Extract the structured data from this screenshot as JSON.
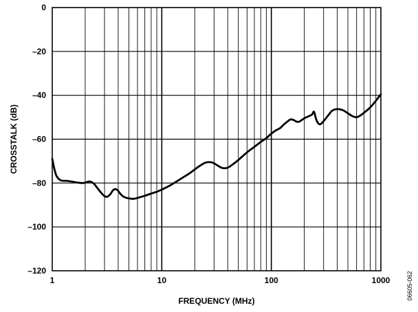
{
  "chart_data": {
    "type": "line",
    "xlabel": "FREQUENCY (MHz)",
    "ylabel": "CROSSTALK (dB)",
    "xscale": "log",
    "xlim": [
      1,
      1000
    ],
    "ylim": [
      -120,
      0
    ],
    "xticks": [
      "1",
      "10",
      "100",
      "1000"
    ],
    "yticks": [
      "0",
      "–20",
      "–40",
      "–60",
      "–80",
      "–100",
      "–120"
    ],
    "grid": true,
    "legend": "none",
    "series": [
      {
        "x": [
          1,
          1.05,
          1.1,
          1.2,
          1.35,
          1.5,
          1.7,
          1.9,
          2.0,
          2.2,
          2.4,
          2.6,
          2.8,
          3.0,
          3.2,
          3.4,
          3.6,
          3.8,
          4.0,
          4.2,
          4.5,
          5.0,
          5.5,
          6.0,
          7.0,
          8.0,
          9.0,
          10,
          12,
          15,
          18,
          20,
          22,
          25,
          28,
          30,
          33,
          36,
          40,
          45,
          50,
          60,
          70,
          80,
          90,
          100,
          110,
          120,
          130,
          140,
          150,
          160,
          170,
          180,
          200,
          220,
          235,
          245,
          255,
          265,
          280,
          300,
          330,
          360,
          400,
          450,
          500,
          550,
          600,
          650,
          700,
          800,
          900,
          1000
        ],
        "y": [
          -69,
          -74,
          -77,
          -78.8,
          -79,
          -79.3,
          -79.8,
          -80,
          -79.8,
          -79.3,
          -80.3,
          -82.5,
          -84.5,
          -86,
          -86.2,
          -85,
          -83.2,
          -82.8,
          -83.6,
          -85,
          -86.3,
          -87,
          -87.2,
          -86.8,
          -85.8,
          -84.8,
          -84,
          -83,
          -81,
          -78,
          -75.5,
          -73.8,
          -72.3,
          -70.7,
          -70.5,
          -71,
          -72.3,
          -73.2,
          -73,
          -71.3,
          -69.5,
          -66,
          -63.5,
          -61.3,
          -59.5,
          -57.5,
          -56,
          -55,
          -53.3,
          -52,
          -51,
          -51.3,
          -52,
          -52,
          -50.5,
          -49.5,
          -48.8,
          -47.5,
          -50.5,
          -52.5,
          -53.2,
          -51.8,
          -49.2,
          -47,
          -46.3,
          -46.8,
          -48.2,
          -49.5,
          -50,
          -49.2,
          -48,
          -45.5,
          -42.5,
          -39.5
        ]
      }
    ]
  },
  "figure_code": "06605-062"
}
